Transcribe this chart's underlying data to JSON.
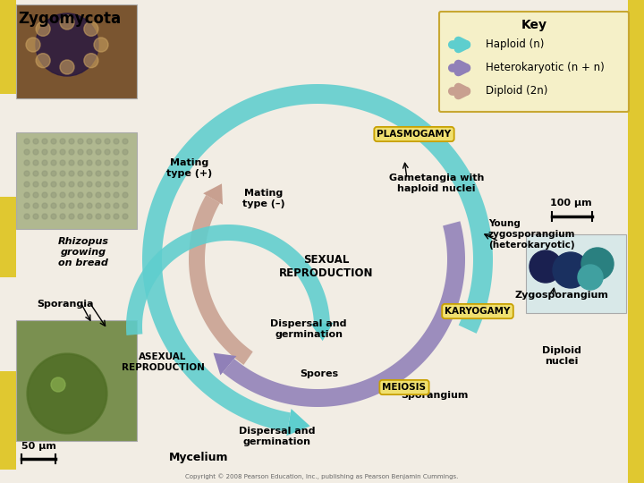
{
  "title": "Zygomycota",
  "bg_color": "#f2ede4",
  "key_title": "Key",
  "key_bg": "#f5f0c8",
  "key_border": "#c8a832",
  "key_items": [
    {
      "label": "Haploid (n)",
      "color": "#5ecece"
    },
    {
      "label": "Heterokaryotic (n + n)",
      "color": "#9080b8"
    },
    {
      "label": "Diploid (2n)",
      "color": "#c8a090"
    }
  ],
  "labels": {
    "mating_plus": "Mating\ntype (+)",
    "mating_minus": "Mating\ntype (–)",
    "gametangia": "Gametangia with\nhaploid nuclei",
    "plasmogamy": "PLASMOGAMY",
    "young_zygo": "Young\nzygosporangium\n(heterokaryotic)",
    "sexual_repro": "SEXUAL\nREPRODUCTION",
    "karyogamy": "KARYOGAMY",
    "zygosporangium": "Zygosporangium",
    "diploid_nuclei": "Diploid\nnuclei",
    "meiosis": "MEIOSIS",
    "dispersal1": "Dispersal and\ngermination",
    "sporangia": "Sporangia",
    "spores": "Spores",
    "sporangium": "Sporangium",
    "asexual_repro": "ASEXUAL\nREPRODUCTION",
    "dispersal2": "Dispersal and\ngermination",
    "mycelium": "Mycelium",
    "rhizopus": "Rhizopus\ngrowing\non bread",
    "scale_top": "100 μm",
    "scale_bottom": "50 μm"
  },
  "box_bg": "#f0e070",
  "box_border": "#c8a000",
  "yellow_sidebar": "#e0c830"
}
